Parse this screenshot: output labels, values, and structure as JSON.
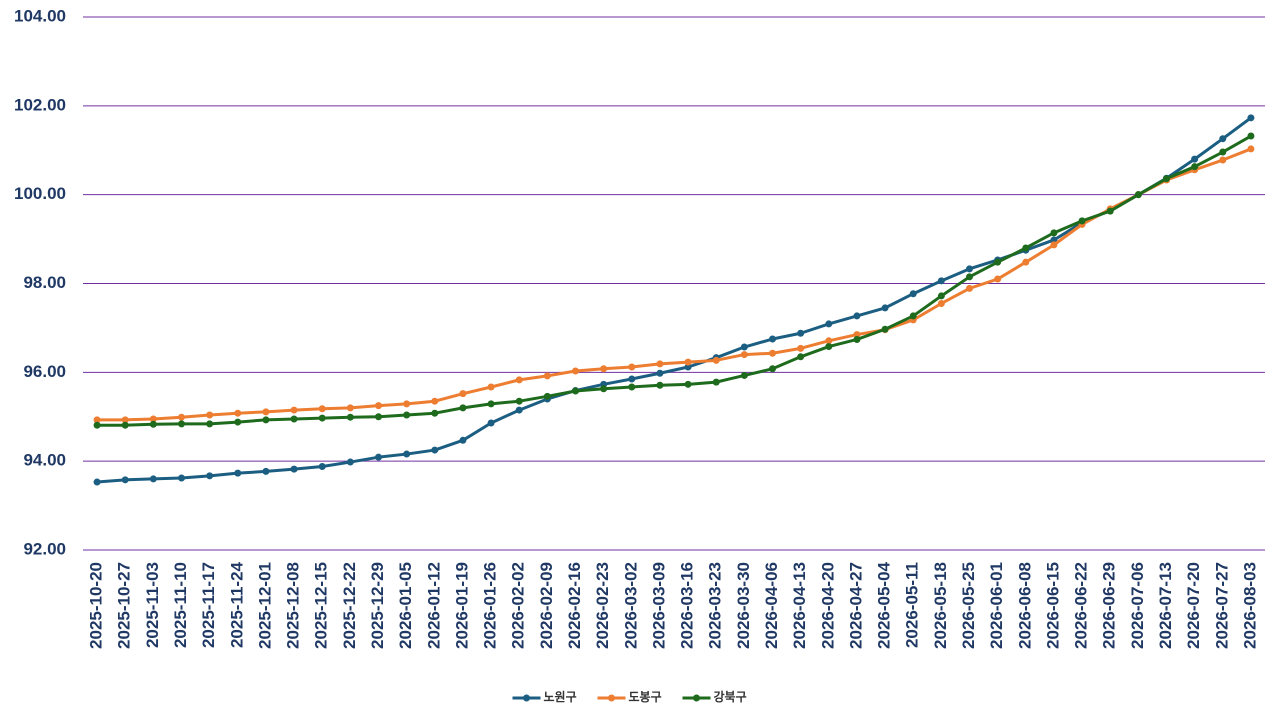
{
  "chart_data": {
    "type": "line",
    "categories": [
      "2025-10-20",
      "2025-10-27",
      "2025-11-03",
      "2025-11-10",
      "2025-11-17",
      "2025-11-24",
      "2025-12-01",
      "2025-12-08",
      "2025-12-15",
      "2025-12-22",
      "2025-12-29",
      "2026-01-05",
      "2026-01-12",
      "2026-01-19",
      "2026-01-26",
      "2026-02-02",
      "2026-02-09",
      "2026-02-16",
      "2026-02-23",
      "2026-03-02",
      "2026-03-09",
      "2026-03-16",
      "2026-03-23",
      "2026-03-30",
      "2026-04-06",
      "2026-04-13",
      "2026-04-20",
      "2026-04-27",
      "2026-05-04",
      "2026-05-11",
      "2026-05-18",
      "2026-05-25",
      "2026-06-01",
      "2026-06-08",
      "2026-06-15",
      "2026-06-22",
      "2026-06-29",
      "2026-07-06",
      "2026-07-13",
      "2026-07-20",
      "2026-07-27",
      "2026-08-03"
    ],
    "series": [
      {
        "name": "노원구",
        "color": "#1b5e82",
        "values": [
          93.53,
          93.58,
          93.6,
          93.62,
          93.67,
          93.73,
          93.77,
          93.82,
          93.88,
          93.98,
          94.09,
          94.16,
          94.25,
          94.47,
          94.86,
          95.15,
          95.4,
          95.59,
          95.73,
          95.85,
          95.98,
          96.12,
          96.33,
          96.57,
          96.75,
          96.88,
          97.09,
          97.27,
          97.45,
          97.77,
          98.06,
          98.33,
          98.53,
          98.75,
          98.98,
          99.37,
          99.65,
          100.0,
          100.37,
          100.8,
          101.26,
          101.73
        ]
      },
      {
        "name": "도봉구",
        "color": "#ed7d31",
        "values": [
          94.93,
          94.93,
          94.95,
          94.99,
          95.04,
          95.08,
          95.11,
          95.15,
          95.18,
          95.2,
          95.25,
          95.29,
          95.35,
          95.52,
          95.67,
          95.83,
          95.92,
          96.03,
          96.08,
          96.12,
          96.19,
          96.23,
          96.27,
          96.4,
          96.43,
          96.54,
          96.71,
          96.85,
          96.96,
          97.18,
          97.55,
          97.89,
          98.1,
          98.48,
          98.87,
          99.33,
          99.68,
          100.0,
          100.33,
          100.56,
          100.78,
          101.03
        ]
      },
      {
        "name": "강북구",
        "color": "#1e6b1e",
        "values": [
          94.81,
          94.81,
          94.83,
          94.84,
          94.84,
          94.88,
          94.93,
          94.95,
          94.97,
          94.99,
          95.0,
          95.04,
          95.08,
          95.2,
          95.29,
          95.35,
          95.46,
          95.58,
          95.63,
          95.67,
          95.71,
          95.73,
          95.78,
          95.93,
          96.08,
          96.35,
          96.58,
          96.74,
          96.97,
          97.27,
          97.72,
          98.15,
          98.48,
          98.8,
          99.14,
          99.41,
          99.63,
          100.0,
          100.36,
          100.63,
          100.96,
          101.32
        ]
      }
    ],
    "ylim": [
      92,
      104
    ],
    "yticks": [
      {
        "value": 92,
        "label": "92.00"
      },
      {
        "value": 94,
        "label": "94.00"
      },
      {
        "value": 96,
        "label": "96.00"
      },
      {
        "value": 98,
        "label": "98.00"
      },
      {
        "value": 100,
        "label": "100.00"
      },
      {
        "value": 102,
        "label": "102.00"
      },
      {
        "value": 104,
        "label": "104.00"
      }
    ],
    "grid": true,
    "grid_color": "#7030a0",
    "legend": "bottom"
  }
}
